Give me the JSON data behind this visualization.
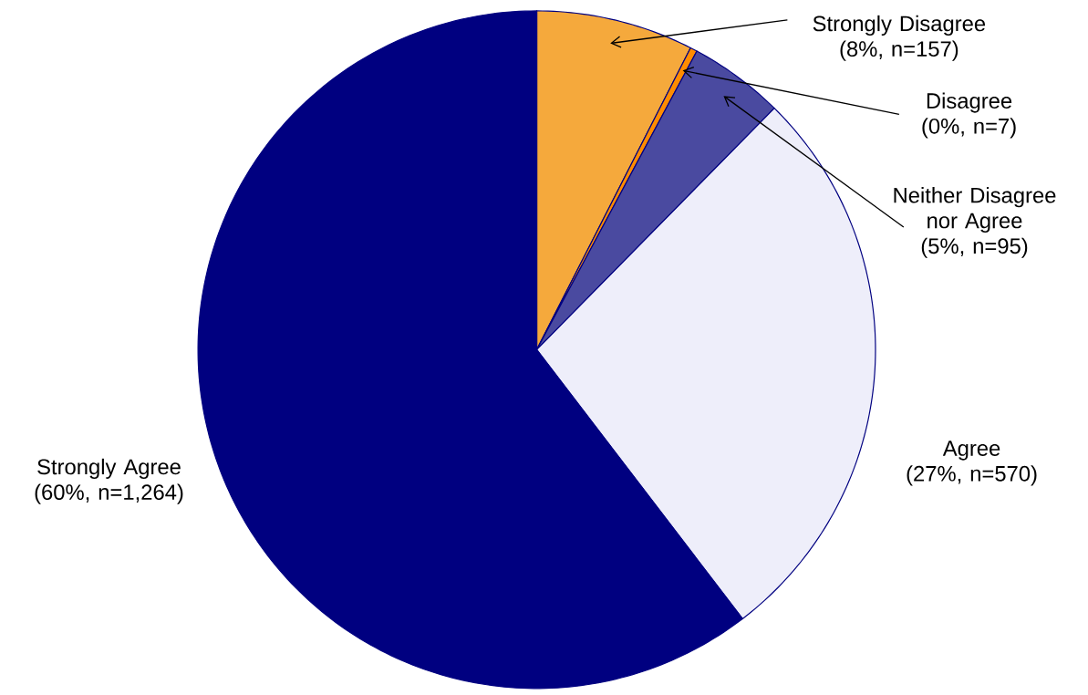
{
  "chart_data": {
    "type": "pie",
    "categories": [
      "Strongly Disagree",
      "Disagree",
      "Neither Disagree nor Agree",
      "Agree",
      "Strongly Agree"
    ],
    "values": [
      157,
      7,
      95,
      570,
      1264
    ],
    "value_labels": [
      "(8%, n=157)",
      "(0%, n=7)",
      "(5%, n=95)",
      "(27%, n=570)",
      "(60%, n=1,264)"
    ],
    "colors": [
      "#f5a93c",
      "#ff8c00",
      "#4a4aa0",
      "#eeeefa",
      "#000080"
    ]
  }
}
